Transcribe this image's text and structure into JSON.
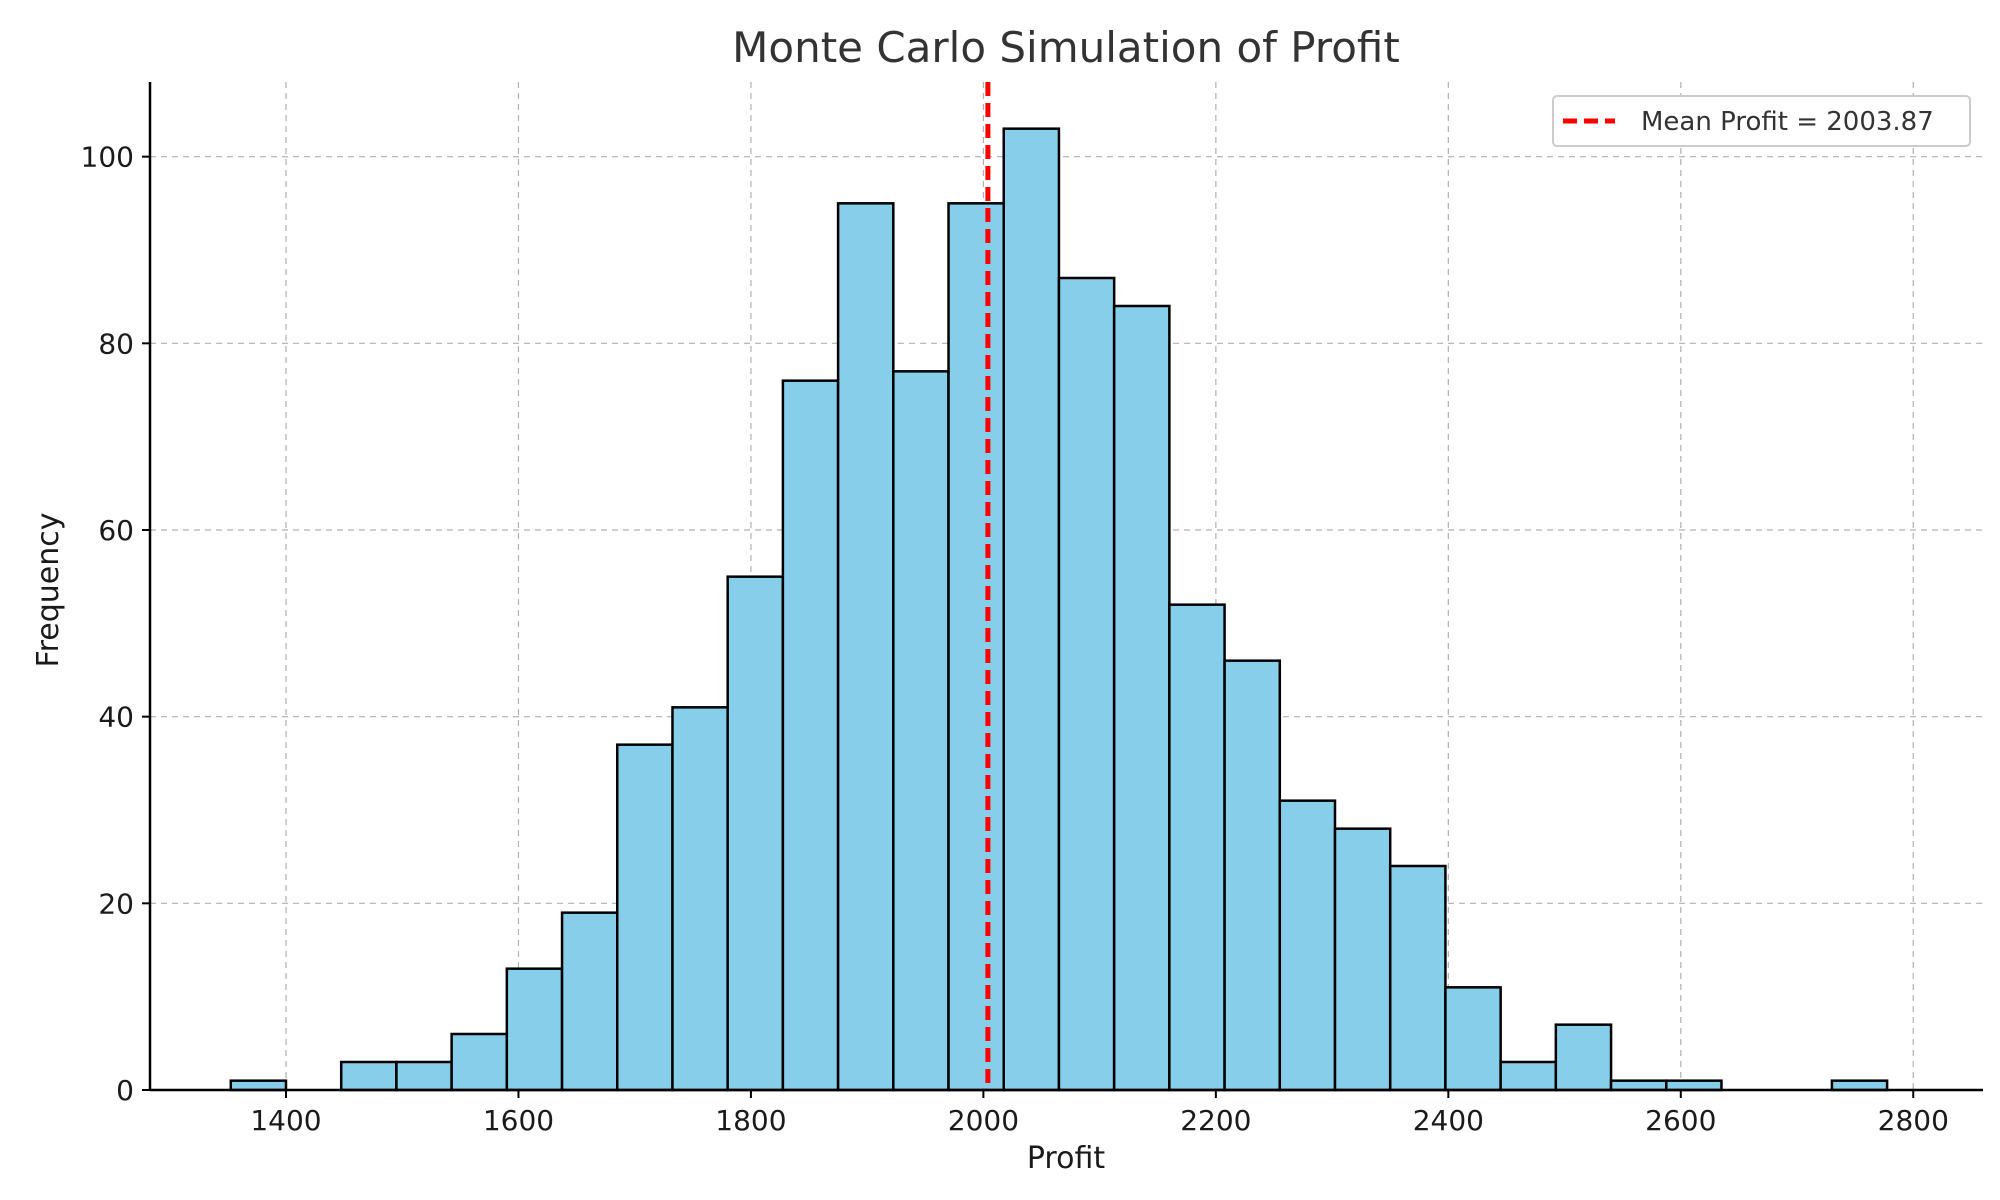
{
  "chart_data": {
    "type": "bar",
    "title": "Monte Carlo Simulation of Profit",
    "xlabel": "Profit",
    "ylabel": "Frequency",
    "xlim": [
      1283,
      2860
    ],
    "ylim": [
      0,
      108
    ],
    "x_ticks": [
      "1400",
      "1600",
      "1800",
      "2000",
      "2200",
      "2400",
      "2600",
      "2800"
    ],
    "y_ticks": [
      "0",
      "20",
      "40",
      "60",
      "80",
      "100"
    ],
    "grid": true,
    "legend": {
      "placement": "top-right",
      "entries": [
        "Mean Profit = 2003.87"
      ]
    },
    "bins": [
      {
        "start": 1352.5,
        "end": 1400.0,
        "count": 1
      },
      {
        "start": 1400.0,
        "end": 1447.5,
        "count": 0
      },
      {
        "start": 1447.5,
        "end": 1495.0,
        "count": 3
      },
      {
        "start": 1495.0,
        "end": 1542.5,
        "count": 3
      },
      {
        "start": 1542.5,
        "end": 1590.0,
        "count": 6
      },
      {
        "start": 1590.0,
        "end": 1637.5,
        "count": 13
      },
      {
        "start": 1637.5,
        "end": 1685.0,
        "count": 19
      },
      {
        "start": 1685.0,
        "end": 1732.5,
        "count": 37
      },
      {
        "start": 1732.5,
        "end": 1780.0,
        "count": 41
      },
      {
        "start": 1780.0,
        "end": 1827.5,
        "count": 55
      },
      {
        "start": 1827.5,
        "end": 1875.0,
        "count": 76
      },
      {
        "start": 1875.0,
        "end": 1922.5,
        "count": 95
      },
      {
        "start": 1922.5,
        "end": 1970.0,
        "count": 77
      },
      {
        "start": 1970.0,
        "end": 2017.5,
        "count": 95
      },
      {
        "start": 2017.5,
        "end": 2065.0,
        "count": 103
      },
      {
        "start": 2065.0,
        "end": 2112.5,
        "count": 87
      },
      {
        "start": 2112.5,
        "end": 2160.0,
        "count": 84
      },
      {
        "start": 2160.0,
        "end": 2207.5,
        "count": 52
      },
      {
        "start": 2207.5,
        "end": 2255.0,
        "count": 46
      },
      {
        "start": 2255.0,
        "end": 2302.5,
        "count": 31
      },
      {
        "start": 2302.5,
        "end": 2350.0,
        "count": 28
      },
      {
        "start": 2350.0,
        "end": 2397.5,
        "count": 24
      },
      {
        "start": 2397.5,
        "end": 2445.0,
        "count": 11
      },
      {
        "start": 2445.0,
        "end": 2492.5,
        "count": 3
      },
      {
        "start": 2492.5,
        "end": 2540.0,
        "count": 7
      },
      {
        "start": 2540.0,
        "end": 2587.5,
        "count": 1
      },
      {
        "start": 2587.5,
        "end": 2635.0,
        "count": 1
      },
      {
        "start": 2635.0,
        "end": 2682.5,
        "count": 0
      },
      {
        "start": 2682.5,
        "end": 2730.0,
        "count": 0
      },
      {
        "start": 2730.0,
        "end": 2777.5,
        "count": 1
      }
    ],
    "mean_line": {
      "value": 2003.87,
      "label": "Mean Profit = 2003.87",
      "style": "dashed"
    },
    "colors": {
      "bar_fill": "#87CEEB",
      "bar_edge": "#000000",
      "mean_line": "#FF0000",
      "grid": "#b0b0b0",
      "axis": "#000000"
    }
  }
}
